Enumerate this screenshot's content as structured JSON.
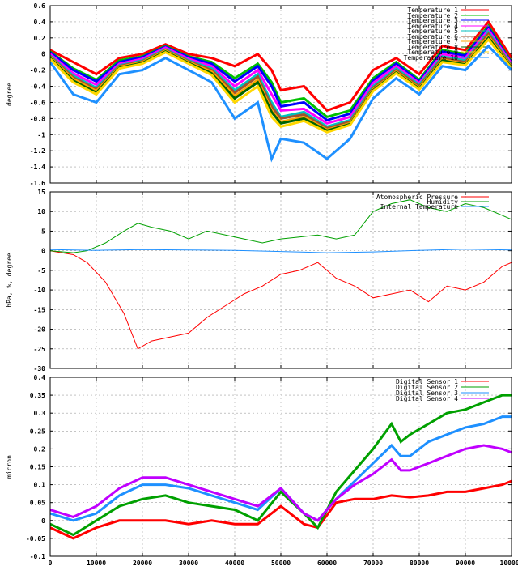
{
  "chart_data": [
    {
      "type": "line",
      "ylabel": "degree",
      "ylim": [
        -1.6,
        0.6
      ],
      "yticks": [
        "0.6",
        "0.4",
        "0.2",
        "0",
        "-0.2",
        "-0.4",
        "-0.6",
        "-0.8",
        "-1",
        "-1.2",
        "-1.4",
        "-1.6"
      ],
      "yticks_values": [
        0.6,
        0.4,
        0.2,
        0,
        -0.2,
        -0.4,
        -0.6,
        -0.8,
        -1,
        -1.2,
        -1.4,
        -1.6
      ],
      "grid": true,
      "legend_position": "top-right",
      "series": [
        {
          "name": "Temperature 1",
          "color": "#ff0000",
          "x": [
            0,
            5000,
            10000,
            15000,
            20000,
            25000,
            30000,
            35000,
            40000,
            45000,
            48000,
            50000,
            55000,
            60000,
            65000,
            70000,
            75000,
            80000,
            85000,
            90000,
            95000,
            100000
          ],
          "y": [
            0.05,
            -0.1,
            -0.25,
            -0.05,
            0.0,
            0.12,
            0.0,
            -0.05,
            -0.15,
            0.0,
            -0.2,
            -0.45,
            -0.4,
            -0.7,
            -0.6,
            -0.2,
            -0.05,
            -0.25,
            0.1,
            0.05,
            0.4,
            -0.05
          ]
        },
        {
          "name": "Temperature 2",
          "color": "#00c000",
          "x": [
            0,
            5000,
            10000,
            15000,
            20000,
            25000,
            30000,
            35000,
            40000,
            45000,
            48000,
            50000,
            55000,
            60000,
            65000,
            70000,
            75000,
            80000,
            85000,
            90000,
            95000,
            100000
          ],
          "y": [
            0.03,
            -0.18,
            -0.32,
            -0.08,
            -0.03,
            0.1,
            -0.03,
            -0.1,
            -0.3,
            -0.12,
            -0.35,
            -0.6,
            -0.55,
            -0.78,
            -0.7,
            -0.3,
            -0.1,
            -0.32,
            0.05,
            0.0,
            0.35,
            -0.1
          ]
        },
        {
          "name": "Temperature 3",
          "color": "#0000ff",
          "x": [
            0,
            5000,
            10000,
            15000,
            20000,
            25000,
            30000,
            35000,
            40000,
            45000,
            48000,
            50000,
            55000,
            60000,
            65000,
            70000,
            75000,
            80000,
            85000,
            90000,
            95000,
            100000
          ],
          "y": [
            0.02,
            -0.2,
            -0.34,
            -0.1,
            -0.04,
            0.09,
            -0.04,
            -0.12,
            -0.34,
            -0.15,
            -0.4,
            -0.65,
            -0.6,
            -0.82,
            -0.74,
            -0.33,
            -0.12,
            -0.34,
            0.03,
            -0.02,
            0.33,
            -0.11
          ]
        },
        {
          "name": "Temperature 4",
          "color": "#ff00ff",
          "x": [
            0,
            5000,
            10000,
            15000,
            20000,
            25000,
            30000,
            35000,
            40000,
            45000,
            48000,
            50000,
            55000,
            60000,
            65000,
            70000,
            75000,
            80000,
            85000,
            90000,
            95000,
            100000
          ],
          "y": [
            0.0,
            -0.24,
            -0.38,
            -0.12,
            -0.06,
            0.08,
            -0.06,
            -0.15,
            -0.4,
            -0.2,
            -0.5,
            -0.7,
            -0.68,
            -0.86,
            -0.78,
            -0.36,
            -0.15,
            -0.36,
            0.0,
            -0.05,
            0.3,
            -0.12
          ]
        },
        {
          "name": "Temperature 5",
          "color": "#00c0c0",
          "x": [
            0,
            5000,
            10000,
            15000,
            20000,
            25000,
            30000,
            35000,
            40000,
            45000,
            48000,
            50000,
            55000,
            60000,
            65000,
            70000,
            75000,
            80000,
            85000,
            90000,
            95000,
            100000
          ],
          "y": [
            -0.02,
            -0.27,
            -0.42,
            -0.14,
            -0.08,
            0.06,
            -0.08,
            -0.18,
            -0.45,
            -0.25,
            -0.6,
            -0.78,
            -0.72,
            -0.9,
            -0.82,
            -0.4,
            -0.18,
            -0.38,
            -0.03,
            -0.08,
            0.27,
            -0.14
          ]
        },
        {
          "name": "Temperature 6",
          "color": "#a0522d",
          "x": [
            0,
            5000,
            10000,
            15000,
            20000,
            25000,
            30000,
            35000,
            40000,
            45000,
            48000,
            50000,
            55000,
            60000,
            65000,
            70000,
            75000,
            80000,
            85000,
            90000,
            95000,
            100000
          ],
          "y": [
            -0.03,
            -0.29,
            -0.44,
            -0.15,
            -0.09,
            0.05,
            -0.09,
            -0.2,
            -0.48,
            -0.28,
            -0.65,
            -0.8,
            -0.75,
            -0.92,
            -0.84,
            -0.42,
            -0.2,
            -0.4,
            -0.05,
            -0.1,
            0.25,
            -0.15
          ]
        },
        {
          "name": "Temperature 7",
          "color": "#ffa500",
          "x": [
            0,
            5000,
            10000,
            15000,
            20000,
            25000,
            30000,
            35000,
            40000,
            45000,
            48000,
            50000,
            55000,
            60000,
            65000,
            70000,
            75000,
            80000,
            85000,
            90000,
            95000,
            100000
          ],
          "y": [
            -0.04,
            -0.31,
            -0.46,
            -0.16,
            -0.1,
            0.04,
            -0.1,
            -0.22,
            -0.52,
            -0.32,
            -0.7,
            -0.84,
            -0.78,
            -0.94,
            -0.86,
            -0.44,
            -0.22,
            -0.42,
            -0.07,
            -0.12,
            0.22,
            -0.16
          ]
        },
        {
          "name": "Temperature 8",
          "color": "#006400",
          "x": [
            0,
            5000,
            10000,
            15000,
            20000,
            25000,
            30000,
            35000,
            40000,
            45000,
            48000,
            50000,
            55000,
            60000,
            65000,
            70000,
            75000,
            80000,
            85000,
            90000,
            95000,
            100000
          ],
          "y": [
            -0.05,
            -0.33,
            -0.48,
            -0.17,
            -0.11,
            0.03,
            -0.11,
            -0.24,
            -0.55,
            -0.35,
            -0.72,
            -0.86,
            -0.8,
            -0.95,
            -0.87,
            -0.45,
            -0.23,
            -0.43,
            -0.08,
            -0.13,
            0.2,
            -0.17
          ]
        },
        {
          "name": "Temperature 9",
          "color": "#ffd700",
          "x": [
            0,
            5000,
            10000,
            15000,
            20000,
            25000,
            30000,
            35000,
            40000,
            45000,
            48000,
            50000,
            55000,
            60000,
            65000,
            70000,
            75000,
            80000,
            85000,
            90000,
            95000,
            100000
          ],
          "y": [
            -0.06,
            -0.35,
            -0.5,
            -0.18,
            -0.12,
            0.02,
            -0.12,
            -0.26,
            -0.6,
            -0.4,
            -0.78,
            -0.9,
            -0.83,
            -0.97,
            -0.88,
            -0.46,
            -0.24,
            -0.44,
            -0.1,
            -0.14,
            0.18,
            -0.18
          ]
        },
        {
          "name": "Temperature 10",
          "color": "#1e90ff",
          "x": [
            0,
            5000,
            10000,
            15000,
            20000,
            25000,
            30000,
            35000,
            40000,
            45000,
            48000,
            50000,
            55000,
            60000,
            65000,
            70000,
            75000,
            80000,
            85000,
            90000,
            95000,
            100000
          ],
          "y": [
            -0.1,
            -0.5,
            -0.6,
            -0.25,
            -0.2,
            -0.05,
            -0.2,
            -0.35,
            -0.8,
            -0.6,
            -1.3,
            -1.05,
            -1.1,
            -1.3,
            -1.05,
            -0.55,
            -0.3,
            -0.5,
            -0.15,
            -0.2,
            0.1,
            -0.2
          ]
        }
      ]
    },
    {
      "type": "line",
      "ylabel": "hPa, %, degree",
      "ylim": [
        -30,
        15
      ],
      "yticks": [
        "15",
        "10",
        "5",
        "0",
        "-5",
        "-10",
        "-15",
        "-20",
        "-25",
        "-30"
      ],
      "yticks_values": [
        15,
        10,
        5,
        0,
        -5,
        -10,
        -15,
        -20,
        -25,
        -30
      ],
      "grid": true,
      "legend_position": "top-right",
      "series": [
        {
          "name": "Atomospheric Pressure",
          "color": "#ff0000",
          "x": [
            0,
            5000,
            8000,
            12000,
            16000,
            19000,
            22000,
            26000,
            30000,
            34000,
            38000,
            42000,
            46000,
            50000,
            54000,
            58000,
            62000,
            66000,
            70000,
            74000,
            78000,
            82000,
            86000,
            90000,
            94000,
            98000,
            100000
          ],
          "y": [
            0,
            -1,
            -3,
            -8,
            -16,
            -25,
            -23,
            -22,
            -21,
            -17,
            -14,
            -11,
            -9,
            -6,
            -5,
            -3,
            -7,
            -9,
            -12,
            -11,
            -10,
            -13,
            -9,
            -10,
            -8,
            -4,
            -3
          ]
        },
        {
          "name": "Humidity",
          "color": "#00a000",
          "x": [
            0,
            5000,
            8000,
            12000,
            16000,
            19000,
            22000,
            26000,
            30000,
            34000,
            38000,
            42000,
            46000,
            50000,
            54000,
            58000,
            62000,
            66000,
            70000,
            74000,
            78000,
            82000,
            86000,
            90000,
            94000,
            98000,
            100000
          ],
          "y": [
            0,
            -0.5,
            0,
            2,
            5,
            7,
            6,
            5,
            3,
            5,
            4,
            3,
            2,
            3,
            3.5,
            4,
            3,
            4,
            10,
            12,
            13,
            11,
            10,
            12,
            11,
            9,
            8
          ]
        },
        {
          "name": "Internal Temperature",
          "color": "#1e90ff",
          "x": [
            0,
            10000,
            20000,
            30000,
            40000,
            50000,
            60000,
            70000,
            80000,
            90000,
            100000
          ],
          "y": [
            0.3,
            0.1,
            0.3,
            0.2,
            0.1,
            -0.2,
            -0.5,
            -0.3,
            0.1,
            0.4,
            0.2
          ]
        }
      ]
    },
    {
      "type": "line",
      "ylabel": "micron",
      "ylim": [
        -0.1,
        0.4
      ],
      "yticks": [
        "0.4",
        "0.35",
        "0.3",
        "0.25",
        "0.2",
        "0.15",
        "0.1",
        "0.05",
        "0",
        "-0.05",
        "-0.1"
      ],
      "yticks_values": [
        0.4,
        0.35,
        0.3,
        0.25,
        0.2,
        0.15,
        0.1,
        0.05,
        0,
        -0.05,
        -0.1
      ],
      "xlim": [
        0,
        100000
      ],
      "xticks": [
        "0",
        "10000",
        "20000",
        "30000",
        "40000",
        "50000",
        "60000",
        "70000",
        "80000",
        "90000",
        "100000"
      ],
      "xticks_values": [
        0,
        10000,
        20000,
        30000,
        40000,
        50000,
        60000,
        70000,
        80000,
        90000,
        100000
      ],
      "grid": true,
      "legend_position": "top-right",
      "series": [
        {
          "name": "Digital Sensor 1",
          "color": "#ff0000",
          "x": [
            0,
            5000,
            10000,
            15000,
            20000,
            25000,
            30000,
            35000,
            40000,
            45000,
            50000,
            55000,
            58000,
            62000,
            66000,
            70000,
            74000,
            78000,
            82000,
            86000,
            90000,
            94000,
            98000,
            100000
          ],
          "y": [
            -0.02,
            -0.05,
            -0.02,
            0.0,
            0.0,
            0.0,
            -0.01,
            0.0,
            -0.01,
            -0.01,
            0.04,
            -0.01,
            -0.02,
            0.05,
            0.06,
            0.06,
            0.07,
            0.065,
            0.07,
            0.08,
            0.08,
            0.09,
            0.1,
            0.11
          ]
        },
        {
          "name": "Digital Sensor 2",
          "color": "#00a000",
          "x": [
            0,
            5000,
            10000,
            15000,
            20000,
            25000,
            30000,
            35000,
            40000,
            45000,
            50000,
            55000,
            58000,
            62000,
            66000,
            70000,
            74000,
            76000,
            78000,
            82000,
            86000,
            90000,
            94000,
            98000,
            100000
          ],
          "y": [
            -0.01,
            -0.04,
            0.0,
            0.04,
            0.06,
            0.07,
            0.05,
            0.04,
            0.03,
            0.0,
            0.08,
            0.02,
            -0.02,
            0.08,
            0.14,
            0.2,
            0.27,
            0.22,
            0.24,
            0.27,
            0.3,
            0.31,
            0.33,
            0.35,
            0.35
          ]
        },
        {
          "name": "Digital Sensor 3",
          "color": "#1e90ff",
          "x": [
            0,
            5000,
            10000,
            15000,
            20000,
            25000,
            30000,
            35000,
            40000,
            45000,
            50000,
            55000,
            58000,
            62000,
            66000,
            70000,
            74000,
            76000,
            78000,
            82000,
            86000,
            90000,
            94000,
            98000,
            100000
          ],
          "y": [
            0.02,
            0.0,
            0.02,
            0.07,
            0.1,
            0.1,
            0.09,
            0.07,
            0.05,
            0.03,
            0.09,
            0.02,
            0.0,
            0.06,
            0.11,
            0.16,
            0.21,
            0.18,
            0.18,
            0.22,
            0.24,
            0.26,
            0.27,
            0.29,
            0.29
          ]
        },
        {
          "name": "Digital Sensor 4",
          "color": "#c000ff",
          "x": [
            0,
            5000,
            10000,
            15000,
            20000,
            25000,
            30000,
            35000,
            40000,
            45000,
            50000,
            55000,
            58000,
            62000,
            66000,
            70000,
            74000,
            76000,
            78000,
            82000,
            86000,
            90000,
            94000,
            98000,
            100000
          ],
          "y": [
            0.03,
            0.01,
            0.04,
            0.09,
            0.12,
            0.12,
            0.1,
            0.08,
            0.06,
            0.04,
            0.09,
            0.02,
            0.0,
            0.06,
            0.1,
            0.13,
            0.17,
            0.14,
            0.14,
            0.16,
            0.18,
            0.2,
            0.21,
            0.2,
            0.19
          ]
        }
      ]
    }
  ]
}
